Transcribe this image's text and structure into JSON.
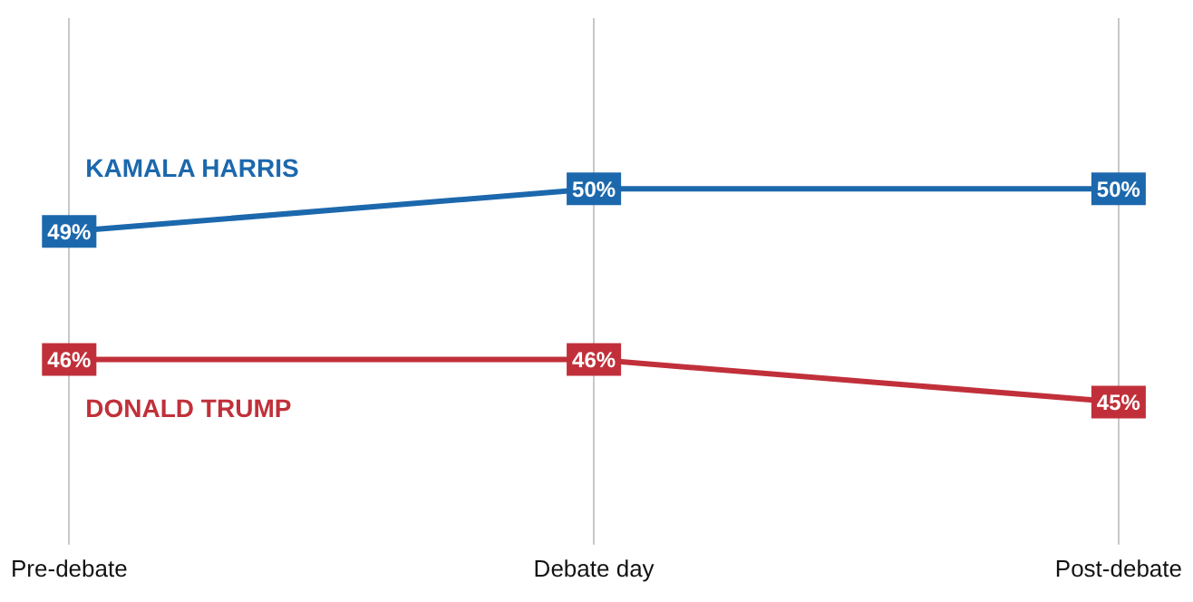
{
  "chart_data": {
    "type": "line",
    "categories": [
      "Pre-debate",
      "Debate day",
      "Post-debate"
    ],
    "series": [
      {
        "name": "KAMALA HARRIS",
        "color": "#1c68ad",
        "values": [
          49,
          50,
          50
        ],
        "value_labels": [
          "49%",
          "50%",
          "50%"
        ]
      },
      {
        "name": "DONALD TRUMP",
        "color": "#c1303a",
        "values": [
          46,
          46,
          45
        ],
        "value_labels": [
          "46%",
          "46%",
          "45%"
        ]
      }
    ],
    "grid": "x",
    "legend": false,
    "marker": "square",
    "line_style": "solid"
  }
}
